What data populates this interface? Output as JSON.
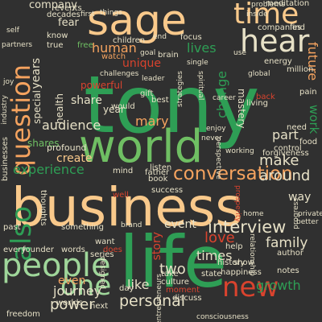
{
  "background": "#303030",
  "palette": {
    "green": "#2e9e55",
    "light_green": "#6fbf63",
    "orange": "#f5a35f",
    "peach": "#f9c98b",
    "red": "#d9432e",
    "dark_red": "#a8322a",
    "pale": "#e7e1c7",
    "mint": "#9fd69a"
  },
  "words": [
    {
      "text": "tony",
      "color": "green"
    },
    {
      "text": "business",
      "color": "peach"
    },
    {
      "text": "life",
      "color": "green"
    },
    {
      "text": "world",
      "color": "light_green"
    },
    {
      "text": "sage",
      "color": "peach"
    },
    {
      "text": "people",
      "color": "mint"
    },
    {
      "text": "time",
      "color": "peach"
    },
    {
      "text": "question",
      "color": "orange"
    },
    {
      "text": "hear",
      "color": "pale"
    },
    {
      "text": "one",
      "color": "mint"
    },
    {
      "text": "new",
      "color": "red"
    },
    {
      "text": "also",
      "color": "green"
    },
    {
      "text": "conversation",
      "color": "orange"
    },
    {
      "text": "interview",
      "color": "pale"
    },
    {
      "text": "personal",
      "color": "pale"
    },
    {
      "text": "power",
      "color": "pale"
    },
    {
      "text": "two",
      "color": "pale"
    },
    {
      "text": "mary",
      "color": "orange"
    },
    {
      "text": "audience",
      "color": "pale"
    },
    {
      "text": "experience",
      "color": "green"
    },
    {
      "text": "around",
      "color": "pale"
    },
    {
      "text": "make",
      "color": "pale"
    },
    {
      "text": "love",
      "color": "red"
    },
    {
      "text": "family",
      "color": "pale"
    },
    {
      "text": "story",
      "color": "red"
    },
    {
      "text": "journey",
      "color": "pale"
    },
    {
      "text": "even",
      "color": "orange"
    },
    {
      "text": "like",
      "color": "pale"
    },
    {
      "text": "growth",
      "color": "green"
    },
    {
      "text": "times",
      "color": "pale"
    },
    {
      "text": "human",
      "color": "orange"
    },
    {
      "text": "share",
      "color": "pale"
    },
    {
      "text": "lives",
      "color": "green"
    },
    {
      "text": "future",
      "color": "orange"
    },
    {
      "text": "change",
      "color": "green"
    },
    {
      "text": "work",
      "color": "green"
    },
    {
      "text": "part",
      "color": "pale"
    },
    {
      "text": "create",
      "color": "peach"
    },
    {
      "text": "event",
      "color": "pale"
    },
    {
      "text": "company",
      "color": "pale"
    },
    {
      "text": "fear",
      "color": "pale"
    },
    {
      "text": "years",
      "color": "pale"
    },
    {
      "text": "special",
      "color": "pale"
    },
    {
      "text": "health",
      "color": "pale"
    },
    {
      "text": "unique",
      "color": "red"
    },
    {
      "text": "powerful",
      "color": "red"
    },
    {
      "text": "year",
      "color": "pale"
    },
    {
      "text": "mastery",
      "color": "pale"
    },
    {
      "text": "way",
      "color": "pale"
    },
    {
      "text": "shares",
      "color": "light_green"
    },
    {
      "text": "profound",
      "color": "pale"
    },
    {
      "text": "children",
      "color": "pale"
    },
    {
      "text": "events",
      "color": "pale"
    },
    {
      "text": "decades",
      "color": "pale"
    },
    {
      "text": "first",
      "color": "pale"
    },
    {
      "text": "free",
      "color": "light_green"
    },
    {
      "text": "know",
      "color": "pale"
    },
    {
      "text": "true",
      "color": "pale"
    },
    {
      "text": "watch",
      "color": "orange"
    },
    {
      "text": "focus",
      "color": "pale"
    },
    {
      "text": "brain",
      "color": "pale"
    },
    {
      "text": "energy",
      "color": "pale"
    },
    {
      "text": "meditation",
      "color": "pale"
    },
    {
      "text": "find",
      "color": "pale"
    },
    {
      "text": "companies",
      "color": "pale"
    },
    {
      "text": "gift",
      "color": "pale"
    },
    {
      "text": "best",
      "color": "pale"
    },
    {
      "text": "would",
      "color": "pale"
    },
    {
      "text": "listen",
      "color": "pale"
    },
    {
      "text": "father",
      "color": "pale"
    },
    {
      "text": "book",
      "color": "pale"
    },
    {
      "text": "mind",
      "color": "pale"
    },
    {
      "text": "success",
      "color": "pale"
    },
    {
      "text": "happiness",
      "color": "pale"
    },
    {
      "text": "history",
      "color": "pale"
    },
    {
      "text": "state",
      "color": "pale"
    },
    {
      "text": "culture",
      "color": "pale"
    },
    {
      "text": "take",
      "color": "pale"
    },
    {
      "text": "moment",
      "color": "red"
    },
    {
      "text": "discuss",
      "color": "pale"
    },
    {
      "text": "show",
      "color": "pale"
    },
    {
      "text": "notes",
      "color": "pale"
    },
    {
      "text": "something",
      "color": "pale"
    },
    {
      "text": "want",
      "color": "pale"
    },
    {
      "text": "founder",
      "color": "pale"
    },
    {
      "text": "every",
      "color": "pale"
    },
    {
      "text": "words",
      "color": "pale"
    },
    {
      "text": "series",
      "color": "pale"
    },
    {
      "text": "next",
      "color": "pale"
    },
    {
      "text": "worlds",
      "color": "pale"
    },
    {
      "text": "day",
      "color": "pale"
    },
    {
      "text": "freedom",
      "color": "pale"
    },
    {
      "text": "past",
      "color": "pale"
    },
    {
      "text": "does",
      "color": "red"
    },
    {
      "text": "author",
      "color": "pale"
    },
    {
      "text": "help",
      "color": "pale"
    },
    {
      "text": "food",
      "color": "pale"
    },
    {
      "text": "control",
      "color": "pale"
    },
    {
      "text": "forgiveness",
      "color": "pale"
    },
    {
      "text": "need",
      "color": "pale"
    },
    {
      "text": "pain",
      "color": "pale"
    },
    {
      "text": "million",
      "color": "pale"
    },
    {
      "text": "living",
      "color": "pale"
    },
    {
      "text": "back",
      "color": "red"
    },
    {
      "text": "thoughts",
      "color": "pale"
    },
    {
      "text": "businesses",
      "color": "pale"
    },
    {
      "text": "well",
      "color": "red"
    },
    {
      "text": "private",
      "color": "pale"
    },
    {
      "text": "better",
      "color": "pale"
    },
    {
      "text": "progress",
      "color": "pale"
    },
    {
      "text": "problems",
      "color": "pale"
    },
    {
      "text": "inside",
      "color": "pale"
    },
    {
      "text": "things",
      "color": "pale"
    },
    {
      "text": "partners",
      "color": "pale"
    },
    {
      "text": "single",
      "color": "pale"
    },
    {
      "text": "goal",
      "color": "pale"
    },
    {
      "text": "prosperity",
      "color": "red"
    },
    {
      "text": "relationship",
      "color": "pale"
    },
    {
      "text": "spiritual",
      "color": "pale"
    },
    {
      "text": "strategies",
      "color": "pale"
    },
    {
      "text": "entrepreneurs",
      "color": "pale"
    },
    {
      "text": "consciousness",
      "color": "pale"
    },
    {
      "text": "perspective",
      "color": "pale"
    },
    {
      "text": "working",
      "color": "pale"
    },
    {
      "text": "career",
      "color": "pale"
    },
    {
      "text": "never",
      "color": "pale"
    },
    {
      "text": "brand",
      "color": "pale"
    },
    {
      "text": "designed",
      "color": "pale"
    },
    {
      "text": "industry",
      "color": "pale"
    },
    {
      "text": "joy",
      "color": "pale"
    },
    {
      "text": "create",
      "color": "pale"
    },
    {
      "text": "use",
      "color": "pale"
    },
    {
      "text": "self",
      "color": "pale"
    },
    {
      "text": "end",
      "color": "pale"
    },
    {
      "text": "enjoy",
      "color": "pale"
    },
    {
      "text": "home",
      "color": "pale"
    },
    {
      "text": "leader",
      "color": "pale"
    },
    {
      "text": "challenges",
      "color": "pale"
    },
    {
      "text": "global",
      "color": "pale"
    }
  ]
}
